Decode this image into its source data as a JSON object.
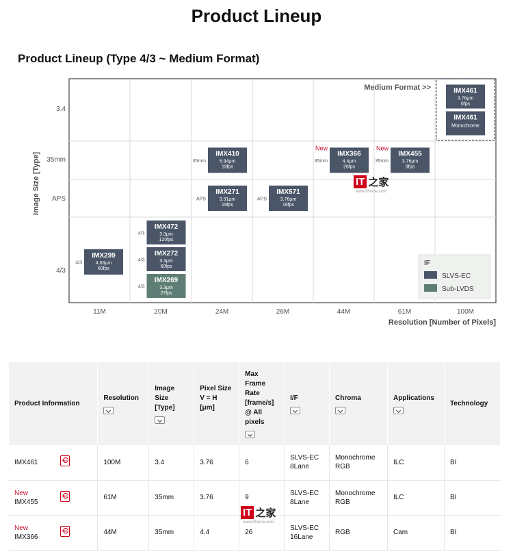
{
  "page_title": "Product Lineup",
  "section_title": "Product Lineup (Type 4/3 ~ Medium Format)",
  "watermark": {
    "logo_text": "IT",
    "logo_zh": "之家",
    "url": "www.ithome.com"
  },
  "colors": {
    "slvs_ec": "#4a5568",
    "sub_lvds": "#5e7d75",
    "new": "#c8102e",
    "grid": "#d9d9d9"
  },
  "chart_data": {
    "type": "table",
    "title": "Product Lineup (Type 4/3 ~ Medium Format)",
    "xlabel": "Resolution [Number of Pixels]",
    "ylabel": "Image Size [Type]",
    "x_categories": [
      "11M",
      "20M",
      "24M",
      "26M",
      "44M",
      "61M",
      "100M"
    ],
    "y_categories": [
      "4/3",
      "APS",
      "35mm",
      "3.4"
    ],
    "medium_format_label": "Medium Format >>",
    "new_label": "New",
    "legend": {
      "title": "IF",
      "placement": "bottom-right",
      "entries": [
        {
          "label": "SLVS-EC",
          "color": "#4a5568"
        },
        {
          "label": "Sub-LVDS",
          "color": "#5e7d75"
        }
      ]
    },
    "products": [
      {
        "name": "IMX299",
        "x": "11M",
        "y": "4/3",
        "type_label": "4/3",
        "pixel": "4.63μm",
        "fps": "60fps",
        "if": "SLVS-EC",
        "new": false
      },
      {
        "name": "IMX472",
        "x": "20M",
        "y": "4/3",
        "type_label": "4/3",
        "pixel": "3.3μm",
        "fps": "120fps",
        "if": "SLVS-EC",
        "new": false
      },
      {
        "name": "IMX272",
        "x": "20M",
        "y": "4/3",
        "type_label": "4/3",
        "pixel": "3.3μm",
        "fps": "60fps",
        "if": "SLVS-EC",
        "new": false
      },
      {
        "name": "IMX269",
        "x": "20M",
        "y": "4/3",
        "type_label": "4/3",
        "pixel": "3.3μm",
        "fps": "27fps",
        "if": "Sub-LVDS",
        "new": false
      },
      {
        "name": "IMX410",
        "x": "24M",
        "y": "35mm",
        "type_label": "35mm",
        "pixel": "5.94μm",
        "fps": "19fps",
        "if": "SLVS-EC",
        "new": false
      },
      {
        "name": "IMX271",
        "x": "24M",
        "y": "APS",
        "type_label": "APS",
        "pixel": "3.91μm",
        "fps": "19fps",
        "if": "SLVS-EC",
        "new": false
      },
      {
        "name": "IMX571",
        "x": "26M",
        "y": "APS",
        "type_label": "APS",
        "pixel": "3.76μm",
        "fps": "16fps",
        "if": "SLVS-EC",
        "new": false
      },
      {
        "name": "IMX366",
        "x": "44M",
        "y": "35mm",
        "type_label": "35mm",
        "pixel": "4.4μm",
        "fps": "26fps",
        "if": "SLVS-EC",
        "new": true
      },
      {
        "name": "IMX455",
        "x": "61M",
        "y": "35mm",
        "type_label": "35mm",
        "pixel": "3.76μm",
        "fps": "9fps",
        "if": "SLVS-EC",
        "new": true
      },
      {
        "name": "IMX461",
        "x": "100M",
        "y": "3.4",
        "type_label": "",
        "pixel": "3.76μm",
        "fps": "6fps",
        "if": "SLVS-EC",
        "new": false
      },
      {
        "name": "IMX461",
        "x": "100M",
        "y": "3.4",
        "type_label": "",
        "pixel": "",
        "fps": "",
        "sub": "Monochrome",
        "if": "SLVS-EC",
        "new": false
      }
    ]
  },
  "table": {
    "headers": {
      "product": "Product Information",
      "resolution": "Resolution",
      "image_size": "Image Size [Type]",
      "pixel_size": "Pixel Size V = H [μm]",
      "max_frame_rate": "Max Frame Rate [frame/s] @ All pixels",
      "if": "I/F",
      "chroma": "Chroma",
      "applications": "Applications",
      "technology": "Technology"
    },
    "rows": [
      {
        "new": "",
        "name": "IMX461",
        "resolution": "100M",
        "image_size": "3.4",
        "pixel_size": "3.76",
        "frame_rate": "6",
        "if_line1": "SLVS-EC",
        "if_line2": "8Lane",
        "chroma_line1": "Monochrome",
        "chroma_line2": "RGB",
        "applications": "ILC",
        "technology": "BI"
      },
      {
        "new": "New",
        "name": "IMX455",
        "resolution": "61M",
        "image_size": "35mm",
        "pixel_size": "3.76",
        "frame_rate": "9",
        "if_line1": "SLVS-EC",
        "if_line2": "8Lane",
        "chroma_line1": "Monochrome",
        "chroma_line2": "RGB",
        "applications": "ILC",
        "technology": "BI"
      },
      {
        "new": "New",
        "name": "IMX366",
        "resolution": "44M",
        "image_size": "35mm",
        "pixel_size": "4.4",
        "frame_rate": "26",
        "if_line1": "SLVS-EC",
        "if_line2": "16Lane",
        "chroma_line1": "RGB",
        "chroma_line2": "",
        "applications": "Cam",
        "technology": "BI"
      }
    ]
  }
}
